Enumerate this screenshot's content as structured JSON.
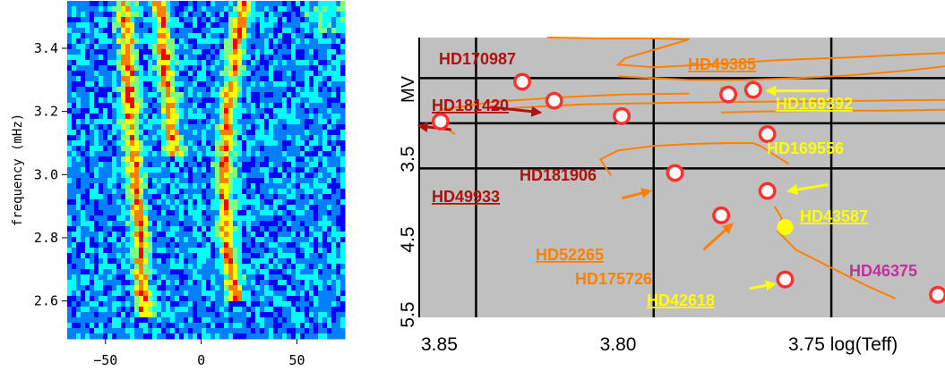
{
  "chart_data": [
    {
      "type": "heatmap",
      "title": "",
      "xlabel": "",
      "ylabel": "frequency (mHz)",
      "xlim": [
        -70,
        75
      ],
      "ylim": [
        2.48,
        3.55
      ],
      "x_ticks": [
        -50,
        0,
        50
      ],
      "x_tick_labels": [
        "−50",
        "0",
        "50"
      ],
      "y_ticks": [
        2.6,
        2.8,
        3.0,
        3.2,
        3.4
      ],
      "y_tick_labels": [
        "2.6",
        "2.8",
        "3.0",
        "3.2",
        "3.4"
      ],
      "colormap": [
        "#00007f",
        "#0000ff",
        "#007fff",
        "#00ffff",
        "#7fff7f",
        "#ffff00",
        "#ff7f00",
        "#ff0000"
      ],
      "ridges": [
        {
          "x": [
            -40,
            -38,
            -36,
            -34,
            -32,
            -30
          ],
          "y": [
            3.55,
            3.3,
            3.1,
            2.95,
            2.8,
            2.55
          ]
        },
        {
          "x": [
            -22,
            -18,
            -14
          ],
          "y": [
            3.55,
            3.3,
            3.05
          ]
        },
        {
          "x": [
            22,
            18,
            14,
            12,
            13,
            18
          ],
          "y": [
            3.55,
            3.4,
            3.2,
            3.0,
            2.8,
            2.6
          ]
        }
      ]
    },
    {
      "type": "scatter",
      "title": "",
      "xlabel": "log(Teff)",
      "ylabel": "MV",
      "x_tick_labels": [
        "3.85",
        "3.80",
        "3.75 log(Teff)"
      ],
      "y_tick_labels": [
        "3.5",
        "4.5",
        "5.5"
      ],
      "xlim": [
        3.866,
        3.718
      ],
      "ylim": [
        5.65,
        2.55
      ],
      "grid": true,
      "background": "#c0c0c0",
      "track_color": "#ff8000",
      "tracks": [
        {
          "x": [
            3.83,
            3.815,
            3.8,
            3.79
          ],
          "y": [
            2.55,
            2.56,
            2.56,
            2.57
          ]
        },
        {
          "x": [
            3.79,
            3.808,
            3.81,
            3.8,
            3.79,
            3.777
          ],
          "y": [
            2.57,
            2.78,
            2.85,
            2.88,
            2.86,
            2.83
          ]
        },
        {
          "x": [
            3.777,
            3.765,
            3.745,
            3.73,
            3.718
          ],
          "y": [
            2.83,
            2.8,
            2.77,
            2.74,
            2.72
          ]
        },
        {
          "x": [
            3.81,
            3.79,
            3.775,
            3.76,
            3.745,
            3.73,
            3.718
          ],
          "y": [
            2.98,
            3.02,
            3.02,
            3.0,
            2.97,
            2.92,
            2.87
          ]
        },
        {
          "x": [
            3.84,
            3.82,
            3.79,
            3.77,
            3.74,
            3.718
          ],
          "y": [
            3.33,
            3.29,
            3.27,
            3.26,
            3.25,
            3.24
          ]
        },
        {
          "x": [
            3.856,
            3.862,
            3.86,
            3.845,
            3.825,
            3.808,
            3.79
          ],
          "y": [
            3.62,
            3.45,
            3.35,
            3.26,
            3.21,
            3.18,
            3.17
          ]
        },
        {
          "x": [
            3.781,
            3.77,
            3.75,
            3.735,
            3.718
          ],
          "y": [
            3.38,
            3.37,
            3.36,
            3.36,
            3.35
          ]
        },
        {
          "x": [
            3.812,
            3.815,
            3.81,
            3.8,
            3.79,
            3.78,
            3.772
          ],
          "y": [
            4.08,
            3.9,
            3.8,
            3.75,
            3.73,
            3.72,
            3.72
          ]
        },
        {
          "x": [
            3.772,
            3.77,
            3.768,
            3.766,
            3.762
          ],
          "y": [
            3.72,
            3.75,
            3.8,
            3.85,
            3.95
          ]
        },
        {
          "x": [
            3.766,
            3.764,
            3.765,
            3.76,
            3.75,
            3.74,
            3.732
          ],
          "y": [
            4.42,
            4.55,
            4.7,
            4.9,
            5.1,
            5.3,
            5.44
          ]
        }
      ],
      "points": [
        {
          "x": 3.837,
          "y": 3.04
        },
        {
          "x": 3.828,
          "y": 3.25
        },
        {
          "x": 3.86,
          "y": 3.48
        },
        {
          "x": 3.809,
          "y": 3.42
        },
        {
          "x": 3.779,
          "y": 3.18
        },
        {
          "x": 3.772,
          "y": 3.13
        },
        {
          "x": 3.768,
          "y": 3.62
        },
        {
          "x": 3.794,
          "y": 4.05
        },
        {
          "x": 3.768,
          "y": 4.25
        },
        {
          "x": 3.781,
          "y": 4.52
        },
        {
          "x": 3.763,
          "y": 5.23
        },
        {
          "x": 3.72,
          "y": 5.4
        }
      ],
      "highlight_point": {
        "x": 3.763,
        "y": 4.65,
        "color": "#ffff00"
      },
      "labels": [
        {
          "text": "HD170987",
          "color": "#b01010",
          "underline": false
        },
        {
          "text": "HD49385",
          "color": "#ff8000",
          "underline": true
        },
        {
          "text": "HD181420",
          "color": "#b01010",
          "underline": true
        },
        {
          "text": "HD169392",
          "color": "#ffff00",
          "underline": true
        },
        {
          "text": "HD169556",
          "color": "#ffff00",
          "underline": false
        },
        {
          "text": "HD181906",
          "color": "#b01010",
          "underline": false
        },
        {
          "text": "HD49933",
          "color": "#b01010",
          "underline": true
        },
        {
          "text": "HD43587",
          "color": "#ffff00",
          "underline": true
        },
        {
          "text": "HD52265",
          "color": "#ff8000",
          "underline": true
        },
        {
          "text": "HD175726",
          "color": "#ff8000",
          "underline": false
        },
        {
          "text": "HD46375",
          "color": "#c030a0",
          "underline": false
        },
        {
          "text": "HD42618",
          "color": "#ffff00",
          "underline": true
        }
      ]
    }
  ]
}
